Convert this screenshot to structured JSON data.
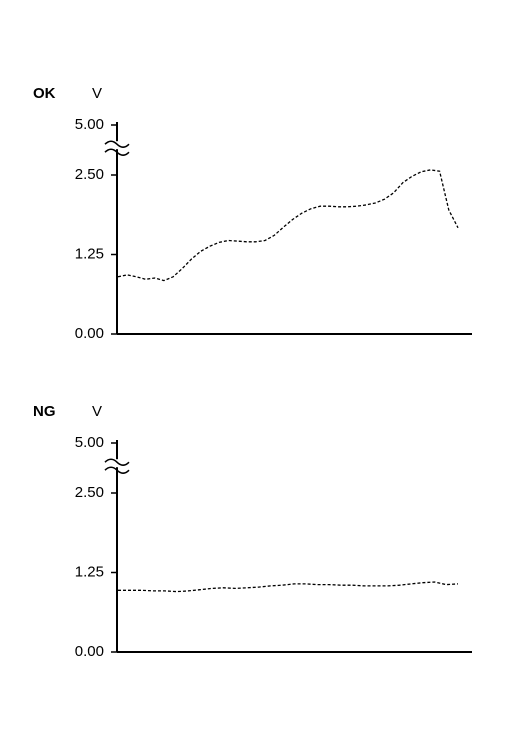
{
  "chart_data": [
    {
      "type": "line",
      "title": "OK",
      "y_label": "V",
      "color": "#000000",
      "dashed": true,
      "ylim": [
        0,
        5
      ],
      "y_break": 3,
      "yticks": [
        {
          "value": 0,
          "label": "0.00"
        },
        {
          "value": 1.25,
          "label": "1.25"
        },
        {
          "value": 2.5,
          "label": "2.50"
        },
        {
          "value": 5,
          "label": "5.00"
        }
      ],
      "values": [
        0.9,
        0.93,
        0.9,
        0.86,
        0.88,
        0.84,
        0.9,
        1.03,
        1.18,
        1.3,
        1.38,
        1.44,
        1.47,
        1.46,
        1.45,
        1.45,
        1.47,
        1.55,
        1.68,
        1.8,
        1.9,
        1.97,
        2.01,
        2.01,
        2.0,
        2.0,
        2.01,
        2.03,
        2.06,
        2.12,
        2.22,
        2.38,
        2.48,
        2.55,
        2.58,
        2.56,
        1.95,
        1.67
      ]
    },
    {
      "type": "line",
      "title": "NG",
      "y_label": "V",
      "color": "#000000",
      "dashed": true,
      "ylim": [
        0,
        5
      ],
      "y_break": 3,
      "yticks": [
        {
          "value": 0,
          "label": "0.00"
        },
        {
          "value": 1.25,
          "label": "1.25"
        },
        {
          "value": 2.5,
          "label": "2.50"
        },
        {
          "value": 5,
          "label": "5.00"
        }
      ],
      "values": [
        0.97,
        0.97,
        0.97,
        0.96,
        0.96,
        0.95,
        0.96,
        0.98,
        1.0,
        1.01,
        1.0,
        1.01,
        1.02,
        1.04,
        1.05,
        1.07,
        1.07,
        1.06,
        1.06,
        1.05,
        1.05,
        1.04,
        1.04,
        1.04,
        1.05,
        1.07,
        1.09,
        1.1,
        1.06,
        1.07
      ]
    }
  ]
}
